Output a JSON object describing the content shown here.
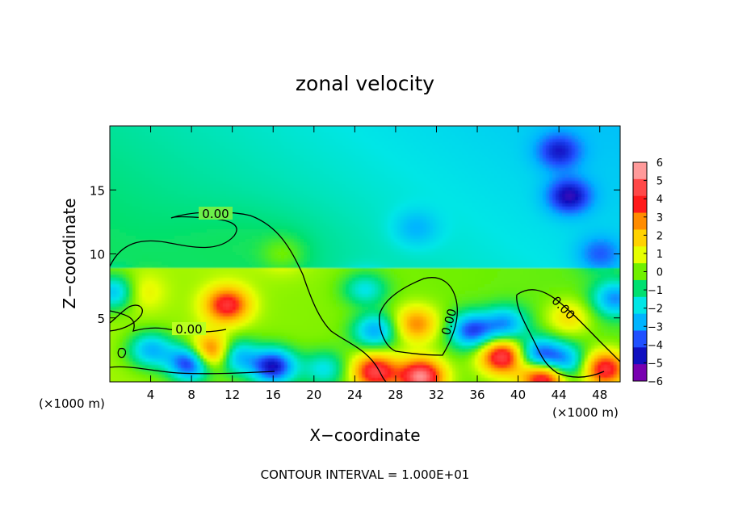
{
  "chart_data": {
    "type": "heatmap",
    "title": "zonal velocity",
    "xlabel": "X−coordinate",
    "ylabel": "Z−coordinate",
    "x_unit_left": "(×1000 m)",
    "x_unit_right": "(×1000 m)",
    "xlim": [
      0,
      50
    ],
    "ylim": [
      0,
      20
    ],
    "x_ticks": [
      4,
      8,
      12,
      16,
      20,
      24,
      28,
      32,
      36,
      40,
      44,
      48
    ],
    "x_tick_labels": [
      "4",
      "8",
      "12",
      "16",
      "20",
      "24",
      "28",
      "32",
      "36",
      "40",
      "44",
      "48"
    ],
    "y_ticks": [
      5,
      10,
      15
    ],
    "y_tick_labels": [
      "5",
      "10",
      "15"
    ],
    "colorbar": {
      "levels": [
        6,
        5,
        4,
        3,
        2,
        1,
        0,
        -1,
        -2,
        -3,
        -4,
        -5,
        -6
      ],
      "labels": [
        "6",
        "5",
        "4",
        "3",
        "2",
        "1",
        "0",
        "−1",
        "−2",
        "−3",
        "−4",
        "−5",
        "−6"
      ],
      "colors": [
        "#ff9a9a",
        "#ff4848",
        "#ff1a1a",
        "#ff8c00",
        "#ffd200",
        "#e6ff00",
        "#70f000",
        "#00e070",
        "#00e6e6",
        "#00b4ff",
        "#2050ff",
        "#1010c0",
        "#7800b0"
      ]
    },
    "features": [
      {
        "x": 11.5,
        "z": 6.0,
        "value": 4.5
      },
      {
        "x": 30.0,
        "z": 4.5,
        "value": 3.2
      },
      {
        "x": 10.0,
        "z": 2.2,
        "value": 6.0
      },
      {
        "x": 26.0,
        "z": 0.8,
        "value": 5.0
      },
      {
        "x": 30.5,
        "z": 0.4,
        "value": 6.0
      },
      {
        "x": 38.5,
        "z": 2.0,
        "value": 5.5
      },
      {
        "x": 42.5,
        "z": 0.4,
        "value": 6.0
      },
      {
        "x": 48.5,
        "z": 1.0,
        "value": 5.0
      },
      {
        "x": 25.0,
        "z": 6.5,
        "value": 1.5
      },
      {
        "x": 38.0,
        "z": 4.5,
        "value": 2.5
      },
      {
        "x": 45.0,
        "z": 5.0,
        "value": 2.0
      },
      {
        "x": 3.0,
        "z": 7.0,
        "value": 1.5
      },
      {
        "x": 17.0,
        "z": 10.0,
        "value": 1.2
      },
      {
        "x": 8.0,
        "z": 1.5,
        "value": -5.5
      },
      {
        "x": 16.0,
        "z": 1.2,
        "value": -5.0
      },
      {
        "x": 12.0,
        "z": 2.0,
        "value": -4.0
      },
      {
        "x": 4.0,
        "z": 2.5,
        "value": -3.0
      },
      {
        "x": 38.5,
        "z": 4.5,
        "value": -5.0
      },
      {
        "x": 35.5,
        "z": 4.0,
        "value": -4.0
      },
      {
        "x": 25.0,
        "z": 7.0,
        "value": -3.0
      },
      {
        "x": 26.0,
        "z": 4.0,
        "value": -3.0
      },
      {
        "x": 42.0,
        "z": 2.0,
        "value": -4.0
      },
      {
        "x": 49.5,
        "z": 6.5,
        "value": -3.0
      },
      {
        "x": 0.5,
        "z": 7.0,
        "value": -3.0
      },
      {
        "x": 45.0,
        "z": 14.5,
        "value": -2.8
      },
      {
        "x": 44.0,
        "z": 18.0,
        "value": -2.2
      },
      {
        "x": 30.0,
        "z": 12.0,
        "value": -1.0
      },
      {
        "x": 48.0,
        "z": 10.0,
        "value": -1.5
      },
      {
        "x": 44.5,
        "z": 1.5,
        "value": -3.0
      },
      {
        "x": 21.0,
        "z": 1.0,
        "value": -2.0
      }
    ],
    "contour_label": "0.00",
    "contour_interval_text": "CONTOUR INTERVAL = 1.000E+01"
  }
}
